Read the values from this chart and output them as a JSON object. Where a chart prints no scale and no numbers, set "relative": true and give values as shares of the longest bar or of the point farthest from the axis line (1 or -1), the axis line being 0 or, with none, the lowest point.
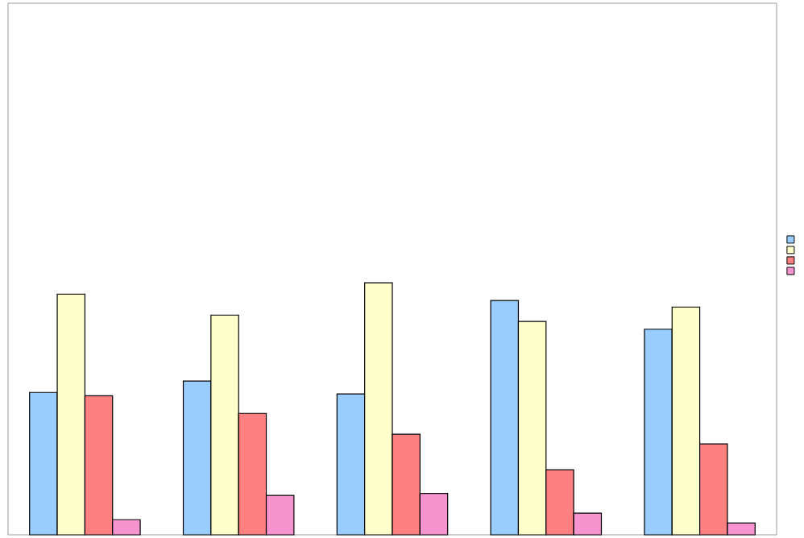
{
  "chart_data": {
    "type": "bar",
    "relative": true,
    "categories": [
      null,
      null,
      null,
      null,
      null
    ],
    "series": [
      {
        "color": "#99ccff",
        "values": [
          0.565,
          0.61,
          0.559,
          0.93,
          0.816
        ]
      },
      {
        "color": "#ffffcc",
        "values": [
          0.955,
          0.872,
          1,
          0.847,
          0.904
        ]
      },
      {
        "color": "#ff8080",
        "values": [
          0.552,
          0.482,
          0.399,
          0.258,
          0.361
        ]
      },
      {
        "color": "#f594cf",
        "values": [
          0.06,
          0.156,
          0.164,
          0.086,
          0.047
        ]
      }
    ]
  }
}
